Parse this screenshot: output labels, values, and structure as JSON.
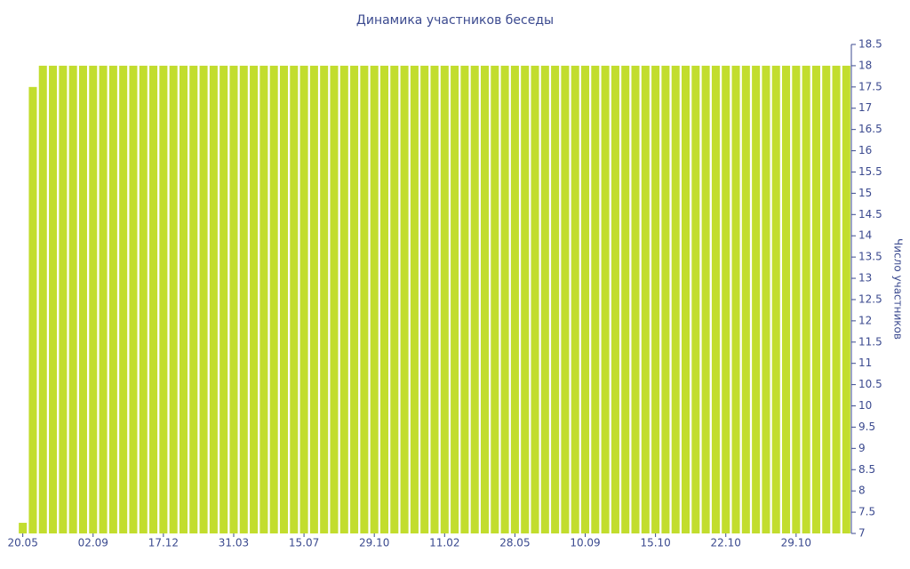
{
  "chart_data": {
    "type": "bar",
    "title": "Динамика участников беседы",
    "y_label": "Число участников",
    "categories": [
      "20.05",
      null,
      null,
      null,
      null,
      null,
      null,
      "02.09",
      null,
      null,
      null,
      null,
      null,
      null,
      "17.12",
      null,
      null,
      null,
      null,
      null,
      null,
      "31.03",
      null,
      null,
      null,
      null,
      null,
      null,
      "15.07",
      null,
      null,
      null,
      null,
      null,
      null,
      "29.10",
      null,
      null,
      null,
      null,
      null,
      null,
      "11.02",
      null,
      null,
      null,
      null,
      null,
      null,
      "28.05",
      null,
      null,
      null,
      null,
      null,
      null,
      "10.09",
      null,
      null,
      null,
      null,
      null,
      null,
      "15.10",
      null,
      null,
      null,
      null,
      null,
      null,
      "22.10",
      null,
      null,
      null,
      null,
      null,
      null,
      "29.10",
      null,
      null,
      null,
      null,
      null
    ],
    "values": [
      7.25,
      17.5,
      18,
      18,
      18,
      18,
      18,
      18,
      18,
      18,
      18,
      18,
      18,
      18,
      18,
      18,
      18,
      18,
      18,
      18,
      18,
      18,
      18,
      18,
      18,
      18,
      18,
      18,
      18,
      18,
      18,
      18,
      18,
      18,
      18,
      18,
      18,
      18,
      18,
      18,
      18,
      18,
      18,
      18,
      18,
      18,
      18,
      18,
      18,
      18,
      18,
      18,
      18,
      18,
      18,
      18,
      18,
      18,
      18,
      18,
      18,
      18,
      18,
      18,
      18,
      18,
      18,
      18,
      18,
      18,
      18,
      18,
      18,
      18,
      18,
      18,
      18,
      18,
      18,
      18,
      18,
      18,
      18
    ],
    "color": "#c2dd2e",
    "ylim": [
      7,
      18.5
    ],
    "yticks": [
      7,
      7.5,
      8,
      8.5,
      9,
      9.5,
      10,
      10.5,
      11,
      11.5,
      12,
      12.5,
      13,
      13.5,
      14,
      14.5,
      15,
      15.5,
      16,
      16.5,
      17,
      17.5,
      18,
      18.5
    ],
    "grid": false
  }
}
